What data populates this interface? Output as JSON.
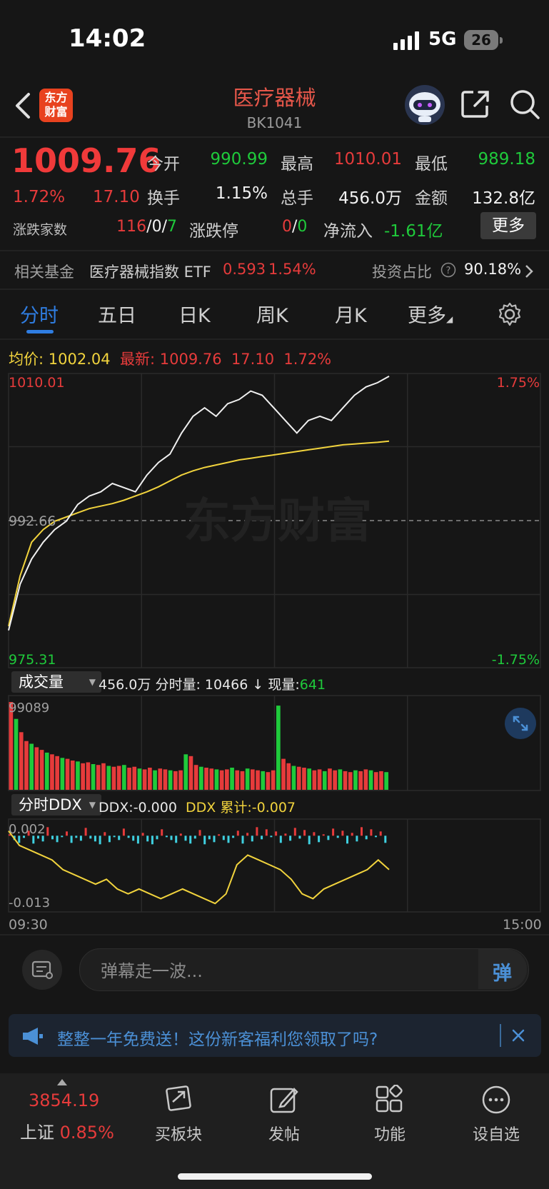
{
  "status_bar": {
    "time": "14:02",
    "network": "5G",
    "battery": "26"
  },
  "header": {
    "logo_text_1": "东方",
    "logo_text_2": "财富",
    "title": "医疗器械",
    "code": "BK1041"
  },
  "quote": {
    "price": "1009.76",
    "change_pct": "1.72%",
    "change": "17.10",
    "open_label": "今开",
    "open": "990.99",
    "high_label": "最高",
    "high": "1010.01",
    "low_label": "最低",
    "low": "989.18",
    "turnover_label": "换手",
    "turnover": "1.15%",
    "volume_label": "总手",
    "volume": "456.0万",
    "amount_label": "金额",
    "amount": "132.8亿",
    "counts_label": "涨跌家数",
    "up_count": "116",
    "flat_count": "0",
    "down_count": "7",
    "sep": "/",
    "limit_label": "涨跌停",
    "limit_up": "0",
    "limit_down": "0",
    "inflow_label": "净流入",
    "inflow": "-1.61亿",
    "more_label": "更多"
  },
  "fund": {
    "label": "相关基金",
    "name": "医疗器械指数 ETF",
    "price": "0.593",
    "pct": "1.54%",
    "ratio_label": "投资占比",
    "ratio": "90.18%"
  },
  "tabs": [
    "分时",
    "五日",
    "日K",
    "周K",
    "月K",
    "更多"
  ],
  "intraday": {
    "avg_label": "均价:",
    "avg": "1002.04",
    "latest_label": "最新:",
    "latest": "1009.76",
    "latest_chg": "17.10",
    "latest_pct": "1.72%",
    "y_top": "1010.01",
    "y_mid": "992.66",
    "y_bottom": "975.31",
    "pct_top": "1.75%",
    "pct_bottom": "-1.75%",
    "watermark": "东方财富"
  },
  "volume": {
    "menu": "成交量",
    "total": "456.0万",
    "tick_label": "分时量:",
    "tick": "10466",
    "arrow": "↓",
    "now_label": "现量:",
    "now": "641",
    "max": "99089"
  },
  "ddx": {
    "menu": "分时DDX",
    "ddx_label": "DDX:",
    "ddx": "-0.000",
    "cum_label": "DDX 累计:",
    "cum": "-0.007",
    "y_top": "0.002",
    "y_bottom": "-0.013",
    "x_start": "09:30",
    "x_end": "15:00"
  },
  "chart_data": [
    {
      "type": "line",
      "title": "",
      "series": [
        {
          "name": "最新",
          "values": [
            979.5,
            985.0,
            988.0,
            990.0,
            991.5,
            992.5,
            994.5,
            995.5,
            996.0,
            997.0,
            996.5,
            996.0,
            998.0,
            999.5,
            1000.5,
            1003.0,
            1005.0,
            1006.0,
            1005.0,
            1006.5,
            1007.0,
            1008.0,
            1007.5,
            1006.0,
            1004.5,
            1003.0,
            1004.5,
            1005.0,
            1004.5,
            1006.0,
            1007.5,
            1008.5,
            1009.0,
            1009.76
          ]
        },
        {
          "name": "均价",
          "values": [
            980.0,
            986.0,
            990.0,
            991.5,
            992.5,
            993.0,
            993.5,
            994.0,
            994.3,
            994.6,
            995.0,
            995.5,
            996.0,
            996.6,
            997.3,
            998.0,
            998.5,
            998.9,
            999.2,
            999.5,
            999.8,
            1000.0,
            1000.2,
            1000.4,
            1000.6,
            1000.8,
            1001.0,
            1001.2,
            1001.4,
            1001.6,
            1001.7,
            1001.8,
            1001.9,
            1002.04
          ]
        }
      ],
      "ylim": [
        975.31,
        1010.01
      ],
      "base": 992.66,
      "xlabel": "",
      "ylabel": ""
    },
    {
      "type": "bar",
      "title": "成交量",
      "values": [
        99089,
        80000,
        65000,
        55000,
        52000,
        48000,
        45000,
        42000,
        40000,
        38000,
        36000,
        35000,
        33000,
        32000,
        30000,
        31000,
        29000,
        28000,
        30000,
        27000,
        26000,
        27000,
        28000,
        25000,
        26000,
        24000,
        23000,
        25000,
        22000,
        24000,
        23000,
        22000,
        21000,
        22000,
        40000,
        38000,
        28000,
        26000,
        25000,
        24000,
        23000,
        22000,
        23000,
        25000,
        22000,
        21000,
        24000,
        23000,
        22000,
        21000,
        20000,
        22000,
        95000,
        35000,
        30000,
        27000,
        26000,
        25000,
        24000,
        22000,
        23000,
        21000,
        24000,
        22000,
        23000,
        21000,
        20000,
        22000,
        21000,
        23000,
        22000,
        20000,
        21000,
        20000
      ],
      "colors_note": "red=up, green=down",
      "ylim": [
        0,
        99089
      ]
    },
    {
      "type": "line",
      "title": "分时DDX",
      "series": [
        {
          "name": "DDX 累计",
          "values": [
            0.001,
            -0.002,
            -0.003,
            -0.004,
            -0.005,
            -0.007,
            -0.008,
            -0.009,
            -0.01,
            -0.009,
            -0.011,
            -0.012,
            -0.011,
            -0.012,
            -0.013,
            -0.012,
            -0.011,
            -0.012,
            -0.013,
            -0.014,
            -0.012,
            -0.006,
            -0.004,
            -0.005,
            -0.006,
            -0.007,
            -0.009,
            -0.012,
            -0.013,
            -0.011,
            -0.01,
            -0.009,
            -0.008,
            -0.007,
            -0.005,
            -0.007
          ]
        }
      ],
      "ylim": [
        -0.015,
        0.003
      ],
      "xlabel": "",
      "ylabel": ""
    }
  ],
  "danmu": {
    "placeholder": "弹幕走一波...",
    "send": "弹"
  },
  "promo": {
    "text": "整整一年免费送！这份新客福利您领取了吗?"
  },
  "bottom_nav": {
    "index_value": "3854.19",
    "index_name": "上证",
    "index_pct": "0.85%",
    "items": [
      "买板块",
      "发帖",
      "功能",
      "设自选"
    ]
  },
  "colors": {
    "up": "#e63b3b",
    "down": "#1fca3b",
    "avg": "#f1d33d",
    "accent": "#2f7de1"
  }
}
